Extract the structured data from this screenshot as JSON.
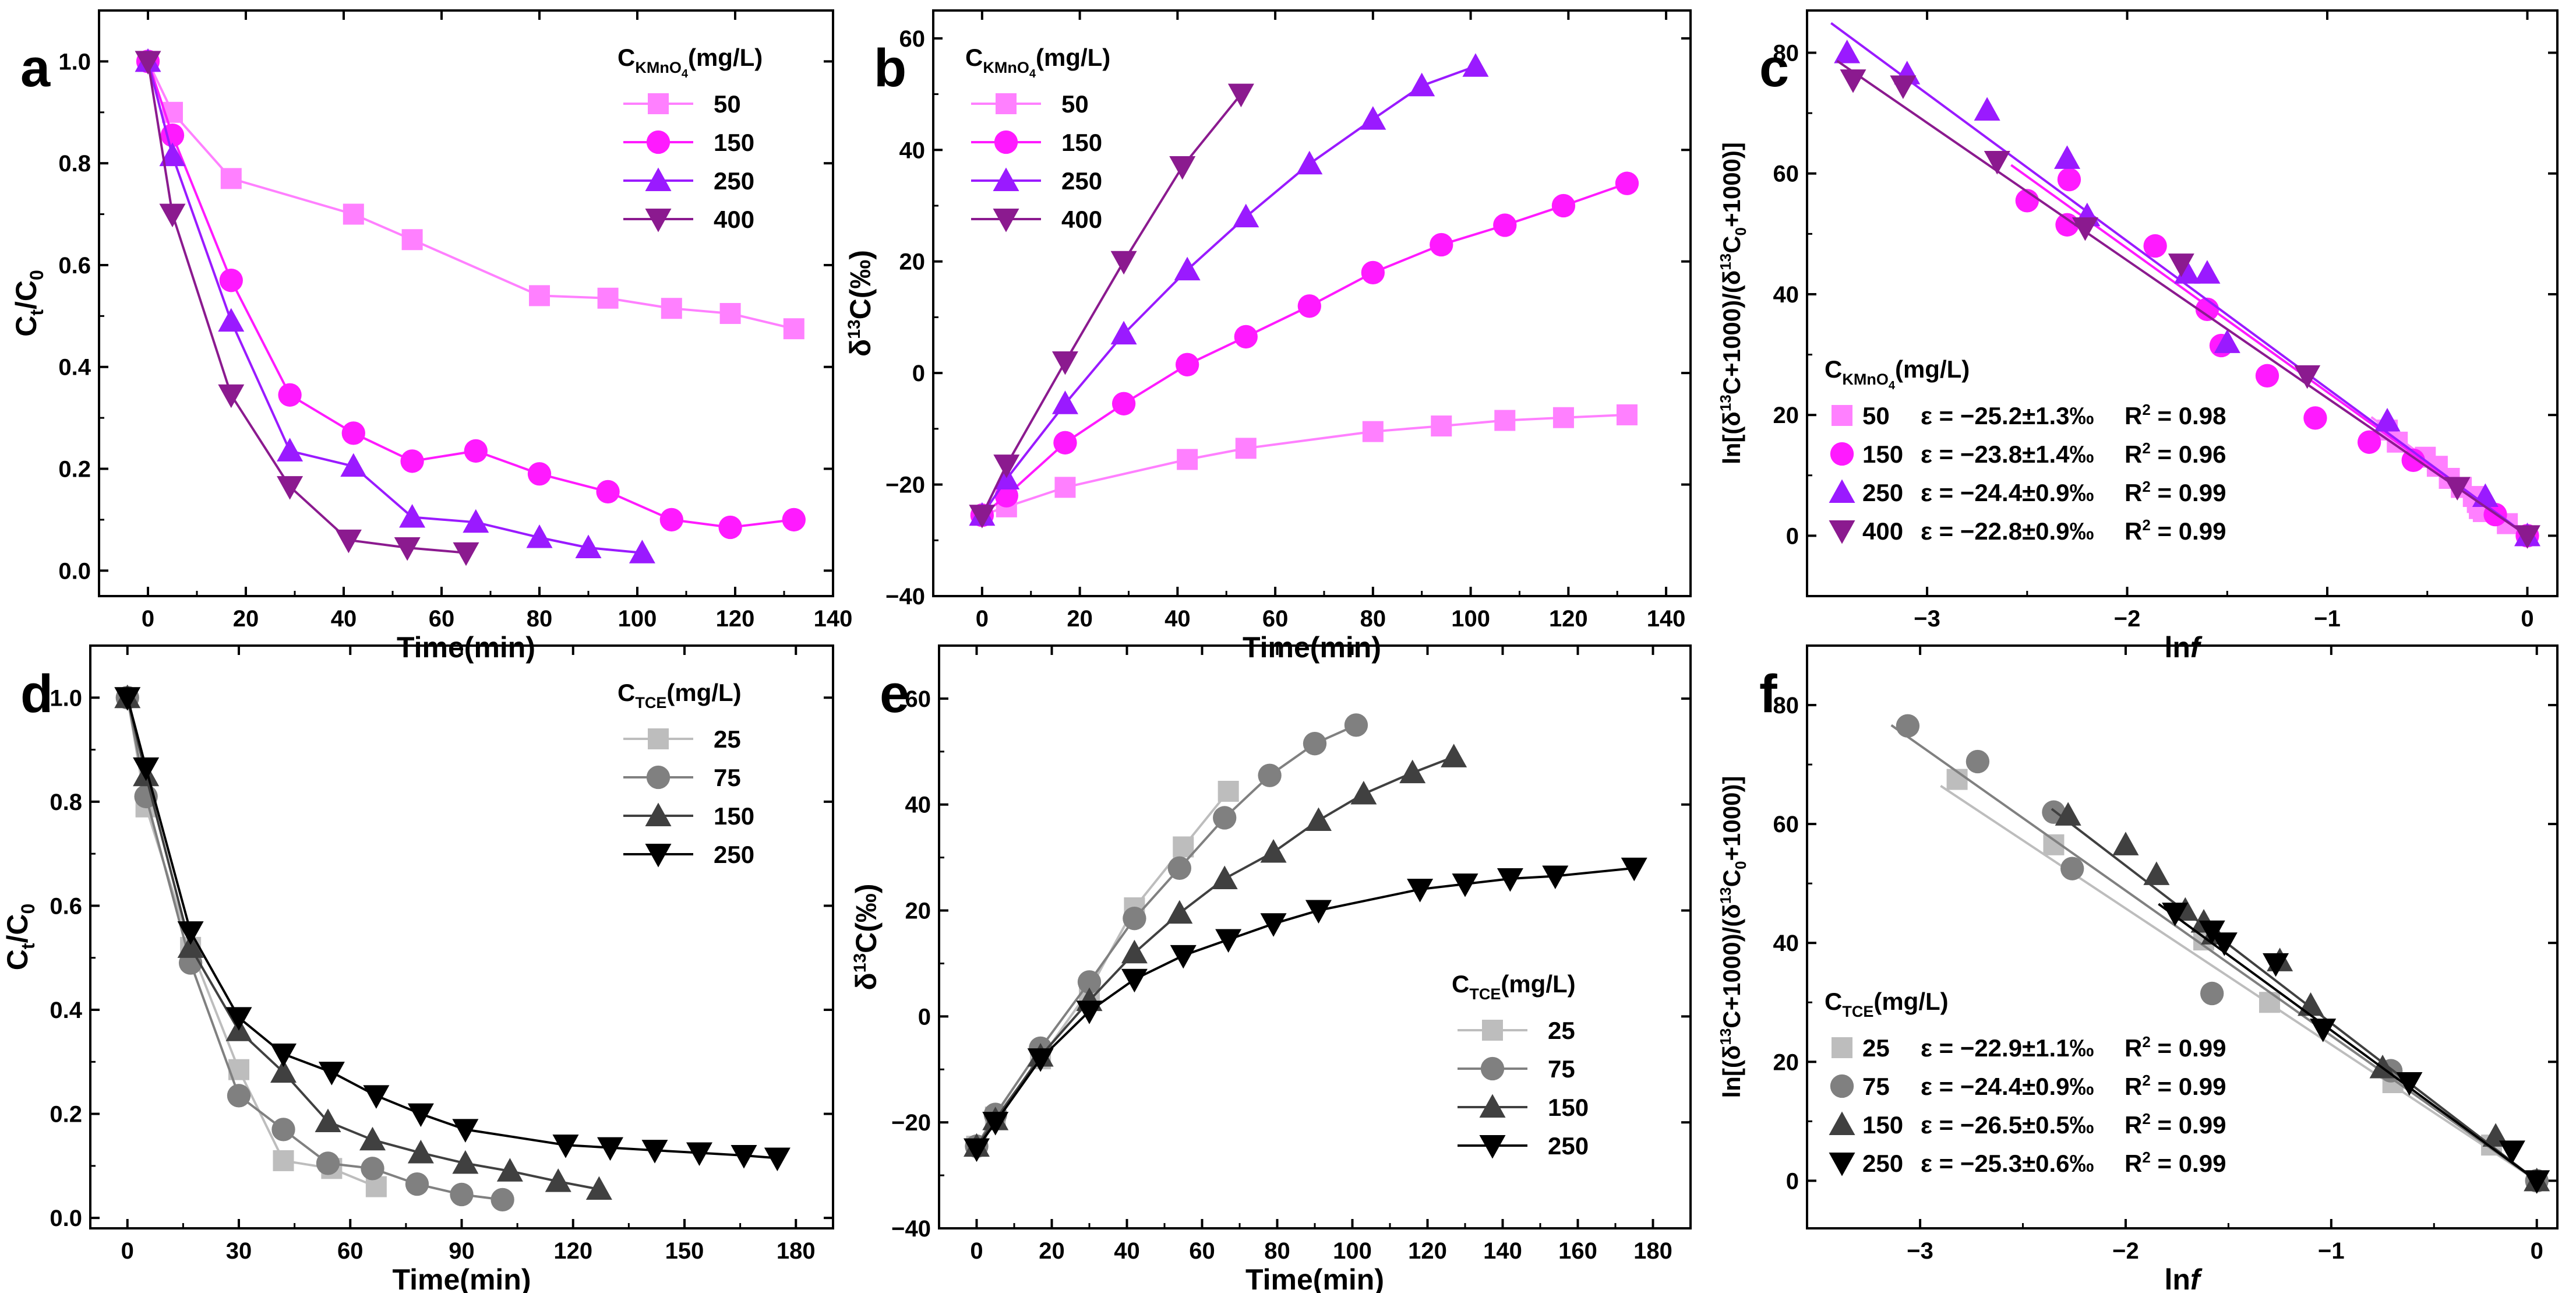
{
  "colors": {
    "magenta": [
      "#ff80ff",
      "#ff1aff",
      "#9a1aff",
      "#8b1a8f"
    ],
    "gray": [
      "#bdbdbd",
      "#808080",
      "#404040",
      "#000000"
    ]
  },
  "chart_data": [
    {
      "id": "a",
      "type": "line",
      "letter": "a",
      "xlabel": "Time(min)",
      "ylabel_main": "C",
      "ylabel_sub1": "t",
      "ylabel_mid": "/C",
      "ylabel_sub2": "0",
      "xlim": [
        -10,
        140
      ],
      "ylim": [
        -0.05,
        1.1
      ],
      "xticks": [
        0,
        20,
        40,
        60,
        80,
        100,
        120,
        140
      ],
      "yticks": [
        0.0,
        0.2,
        0.4,
        0.6,
        0.8,
        1.0
      ],
      "ytick_dec": 1,
      "palette": "magenta",
      "markers": [
        "square",
        "circle",
        "up",
        "down"
      ],
      "legend": {
        "title_main": "C",
        "title_sub": "KMnO",
        "title_sub2": "4",
        "title_rest": "(mg/L)",
        "position": "top-right"
      },
      "series": [
        {
          "name": "50",
          "x": [
            0,
            5,
            17,
            42,
            54,
            80,
            94,
            107,
            119,
            132
          ],
          "y": [
            1.0,
            0.9,
            0.77,
            0.7,
            0.65,
            0.54,
            0.535,
            0.515,
            0.505,
            0.475
          ]
        },
        {
          "name": "150",
          "x": [
            0,
            5,
            17,
            29,
            42,
            54,
            67,
            80,
            94,
            107,
            119,
            132
          ],
          "y": [
            1.0,
            0.855,
            0.57,
            0.345,
            0.27,
            0.215,
            0.235,
            0.19,
            0.155,
            0.1,
            0.085,
            0.1
          ]
        },
        {
          "name": "250",
          "x": [
            0,
            5,
            17,
            29,
            42,
            54,
            67,
            80,
            90,
            101
          ],
          "y": [
            1.0,
            0.815,
            0.49,
            0.235,
            0.205,
            0.105,
            0.095,
            0.065,
            0.045,
            0.035
          ]
        },
        {
          "name": "400",
          "x": [
            0,
            5,
            17,
            29,
            41,
            53,
            65
          ],
          "y": [
            1.0,
            0.7,
            0.345,
            0.165,
            0.06,
            0.045,
            0.035
          ]
        }
      ]
    },
    {
      "id": "b",
      "type": "line",
      "letter": "b",
      "xlabel": "Time(min)",
      "ylabel_kind": "delta",
      "xlim": [
        -10,
        145
      ],
      "ylim": [
        -40,
        65
      ],
      "xticks": [
        0,
        20,
        40,
        60,
        80,
        100,
        120,
        140
      ],
      "yticks": [
        -40,
        -20,
        0,
        20,
        40,
        60
      ],
      "ytick_dec": 0,
      "palette": "magenta",
      "markers": [
        "square",
        "circle",
        "up",
        "down"
      ],
      "legend": {
        "title_main": "C",
        "title_sub": "KMnO",
        "title_sub2": "4",
        "title_rest": "(mg/L)",
        "position": "top-left"
      },
      "series": [
        {
          "name": "50",
          "x": [
            0,
            5,
            17,
            42,
            54,
            80,
            94,
            107,
            119,
            132
          ],
          "y": [
            -25.5,
            -24,
            -20.5,
            -15.5,
            -13.5,
            -10.5,
            -9.5,
            -8.5,
            -8,
            -7.5
          ]
        },
        {
          "name": "150",
          "x": [
            0,
            5,
            17,
            29,
            42,
            54,
            67,
            80,
            94,
            107,
            119,
            132
          ],
          "y": [
            -25.5,
            -22,
            -12.5,
            -5.5,
            1.5,
            6.5,
            12,
            18,
            23,
            26.5,
            30,
            34
          ]
        },
        {
          "name": "250",
          "x": [
            0,
            5,
            17,
            29,
            42,
            54,
            67,
            80,
            90,
            101
          ],
          "y": [
            -25.5,
            -19,
            -5.5,
            7,
            18.5,
            28,
            37.5,
            45.5,
            51.5,
            55
          ]
        },
        {
          "name": "400",
          "x": [
            0,
            5,
            17,
            29,
            41,
            53
          ],
          "y": [
            -25.5,
            -16.5,
            2,
            20,
            37,
            50
          ]
        }
      ]
    },
    {
      "id": "c",
      "type": "scatter",
      "letter": "c",
      "xlabel_main": "ln",
      "xlabel_italic": "f",
      "ylabel_kind": "ln",
      "xlim": [
        -3.6,
        0.15
      ],
      "ylim": [
        -10,
        87
      ],
      "xticks": [
        -3,
        -2,
        -1,
        0
      ],
      "xtick_labels": [
        "−3",
        "−2",
        "−1",
        "0"
      ],
      "yticks": [
        0,
        20,
        40,
        60,
        80
      ],
      "ytick_dec": 0,
      "palette": "magenta",
      "markers": [
        "square",
        "circle",
        "up",
        "down"
      ],
      "legend": {
        "title_main": "C",
        "title_sub": "KMnO",
        "title_sub2": "4",
        "title_rest": "(mg/L)",
        "position": "bottom-left"
      },
      "series": [
        {
          "name": "50",
          "eps": "ε = −25.2±1.3‰",
          "r2": "0.98",
          "slope": -25.2,
          "x": [
            -0.7,
            -0.65,
            -0.51,
            -0.45,
            -0.39,
            -0.33,
            -0.27,
            -0.25,
            -0.24,
            -0.22,
            -0.1,
            0
          ],
          "y": [
            17.5,
            15.5,
            13,
            11.5,
            9.5,
            8,
            6.5,
            5.5,
            4.5,
            4,
            2,
            0
          ]
        },
        {
          "name": "150",
          "eps": "ε = −23.8±1.4‰",
          "r2": "0.96",
          "slope": -23.8,
          "x": [
            -2.5,
            -2.3,
            -2.29,
            -1.86,
            -1.6,
            -1.53,
            -1.3,
            -1.06,
            -0.79,
            -0.57,
            -0.16,
            0
          ],
          "y": [
            55.5,
            51.5,
            59,
            48,
            37.5,
            31.5,
            26.5,
            19.5,
            15.5,
            12.5,
            3.5,
            0
          ]
        },
        {
          "name": "250",
          "eps": "ε = −24.4±0.9‰",
          "r2": "0.99",
          "slope": -24.4,
          "x": [
            -3.4,
            -3.1,
            -2.7,
            -2.3,
            -2.2,
            -1.7,
            -1.6,
            -1.5,
            -0.7,
            -0.21,
            0
          ],
          "y": [
            80,
            76.5,
            70.5,
            62.5,
            53,
            43.5,
            43.5,
            32,
            19,
            6.5,
            0
          ]
        },
        {
          "name": "400",
          "eps": "ε = −22.8±0.9‰",
          "r2": "0.99",
          "slope": -22.8,
          "x": [
            -3.37,
            -3.12,
            -2.65,
            -2.21,
            -1.73,
            -1.1,
            -0.35,
            0
          ],
          "y": [
            75.5,
            74.5,
            62,
            51,
            45,
            26.5,
            8,
            0
          ]
        }
      ]
    },
    {
      "id": "d",
      "type": "line",
      "letter": "d",
      "xlabel": "Time(min)",
      "ylabel_main": "C",
      "ylabel_sub1": "t",
      "ylabel_mid": "/C",
      "ylabel_sub2": "0",
      "xlim": [
        -10,
        190
      ],
      "ylim": [
        -0.02,
        1.1
      ],
      "xticks": [
        0,
        30,
        60,
        90,
        120,
        150,
        180
      ],
      "yticks": [
        0.0,
        0.2,
        0.4,
        0.6,
        0.8,
        1.0
      ],
      "ytick_dec": 1,
      "palette": "gray",
      "markers": [
        "square",
        "circle",
        "up",
        "down"
      ],
      "legend": {
        "title_main": "C",
        "title_sub": "TCE",
        "title_sub2": "",
        "title_rest": "(mg/L)",
        "position": "top-right"
      },
      "series": [
        {
          "name": "25",
          "x": [
            0,
            5,
            17,
            30,
            42,
            55,
            67
          ],
          "y": [
            1.0,
            0.79,
            0.52,
            0.285,
            0.11,
            0.095,
            0.06
          ]
        },
        {
          "name": "75",
          "x": [
            0,
            5,
            17,
            30,
            42,
            54,
            66,
            78,
            90,
            101
          ],
          "y": [
            1.0,
            0.81,
            0.49,
            0.235,
            0.17,
            0.105,
            0.095,
            0.065,
            0.045,
            0.035
          ]
        },
        {
          "name": "150",
          "x": [
            0,
            5,
            17,
            30,
            42,
            54,
            66,
            79,
            91,
            103,
            116,
            127
          ],
          "y": [
            1.0,
            0.85,
            0.52,
            0.36,
            0.28,
            0.185,
            0.15,
            0.125,
            0.105,
            0.09,
            0.07,
            0.055
          ]
        },
        {
          "name": "250",
          "x": [
            0,
            5,
            17,
            30,
            42,
            55,
            67,
            79,
            91,
            118,
            130,
            142,
            154,
            166,
            175
          ],
          "y": [
            1.0,
            0.865,
            0.55,
            0.385,
            0.315,
            0.28,
            0.235,
            0.2,
            0.17,
            0.14,
            0.135,
            0.13,
            0.125,
            0.12,
            0.115
          ]
        }
      ]
    },
    {
      "id": "e",
      "type": "line",
      "letter": "e",
      "xlabel": "Time(min)",
      "ylabel_kind": "delta",
      "xlim": [
        -10,
        190
      ],
      "ylim": [
        -40,
        70
      ],
      "xticks": [
        0,
        20,
        40,
        60,
        80,
        100,
        120,
        140,
        160,
        180
      ],
      "yticks": [
        -40,
        -20,
        0,
        20,
        40,
        60
      ],
      "ytick_dec": 0,
      "palette": "gray",
      "markers": [
        "square",
        "circle",
        "up",
        "down"
      ],
      "legend": {
        "title_main": "C",
        "title_sub": "TCE",
        "title_sub2": "",
        "title_rest": "(mg/L)",
        "position": "bottom-right"
      },
      "series": [
        {
          "name": "25",
          "x": [
            0,
            5,
            17,
            30,
            42,
            55,
            67
          ],
          "y": [
            -24.5,
            -19,
            -8,
            5,
            20.5,
            32,
            42.5
          ]
        },
        {
          "name": "75",
          "x": [
            0,
            5,
            17,
            30,
            42,
            54,
            66,
            78,
            90,
            101
          ],
          "y": [
            -24.5,
            -18.5,
            -6,
            6.5,
            18.5,
            28,
            37.5,
            45.5,
            51.5,
            55
          ]
        },
        {
          "name": "150",
          "x": [
            0,
            5,
            17,
            30,
            42,
            54,
            66,
            79,
            91,
            103,
            116,
            127
          ],
          "y": [
            -24.5,
            -19.5,
            -7.5,
            3,
            12,
            19.5,
            26,
            31,
            37,
            42,
            46,
            49
          ]
        },
        {
          "name": "250",
          "x": [
            0,
            5,
            17,
            30,
            42,
            55,
            67,
            79,
            91,
            118,
            130,
            142,
            154,
            175
          ],
          "y": [
            -25,
            -20,
            -8,
            1,
            7,
            11.5,
            14.5,
            17.5,
            20,
            24,
            25,
            26,
            26.5,
            28
          ]
        }
      ]
    },
    {
      "id": "f",
      "type": "scatter",
      "letter": "f",
      "xlabel_main": "ln",
      "xlabel_italic": "f",
      "ylabel_kind": "ln",
      "xlim": [
        -3.55,
        0.1
      ],
      "ylim": [
        -8,
        90
      ],
      "xticks": [
        -3,
        -2,
        -1,
        0
      ],
      "xtick_labels": [
        "−3",
        "−2",
        "−1",
        "0"
      ],
      "yticks": [
        0,
        20,
        40,
        60,
        80
      ],
      "ytick_dec": 0,
      "palette": "gray",
      "markers": [
        "square",
        "circle",
        "up",
        "down"
      ],
      "legend": {
        "title_main": "C",
        "title_sub": "TCE",
        "title_sub2": "",
        "title_rest": "(mg/L)",
        "position": "bottom-left"
      },
      "series": [
        {
          "name": "25",
          "eps": "ε = −22.9±1.1‰",
          "r2": "0.99",
          "slope": -22.9,
          "x": [
            -2.82,
            -2.35,
            -1.62,
            -1.3,
            -0.7,
            -0.22,
            0
          ],
          "y": [
            67.5,
            56.5,
            40.5,
            30,
            16.5,
            6,
            0
          ]
        },
        {
          "name": "75",
          "eps": "ε = −24.4±0.9‰",
          "r2": "0.99",
          "slope": -24.4,
          "x": [
            -3.06,
            -2.72,
            -2.35,
            -2.26,
            -1.58,
            -0.71,
            0
          ],
          "y": [
            76.5,
            70.5,
            62,
            52.5,
            31.5,
            18.5,
            0
          ]
        },
        {
          "name": "150",
          "eps": "ε = −26.5±0.5‰",
          "r2": "0.99",
          "slope": -26.5,
          "x": [
            -2.28,
            -2.0,
            -1.85,
            -1.71,
            -1.62,
            -1.57,
            -1.25,
            -1.1,
            -0.75,
            -0.2,
            0
          ],
          "y": [
            61.5,
            56.5,
            51.5,
            45.5,
            43.5,
            41.5,
            37,
            29.5,
            19,
            7.5,
            0
          ]
        },
        {
          "name": "250",
          "eps": "ε = −25.3±0.6‰",
          "r2": "0.99",
          "slope": -25.3,
          "x": [
            -1.76,
            -1.58,
            -1.52,
            -1.27,
            -1.04,
            -0.62,
            -0.12,
            0
          ],
          "y": [
            45,
            42,
            40,
            36.5,
            25.5,
            16.5,
            5,
            0
          ]
        }
      ]
    }
  ]
}
